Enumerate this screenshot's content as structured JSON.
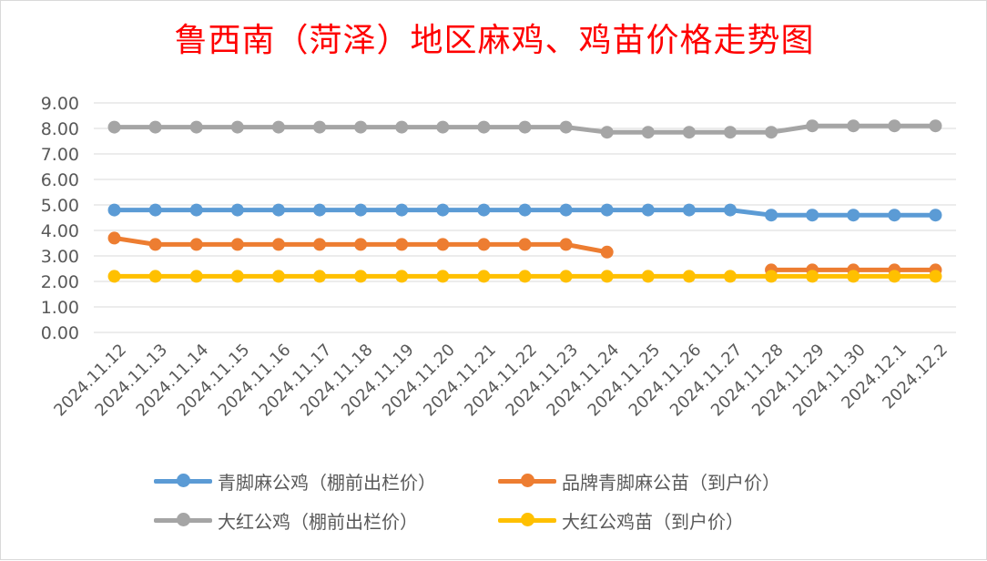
{
  "chart_data": {
    "type": "line",
    "title": "鲁西南（菏泽）地区麻鸡、鸡苗价格走势图",
    "categories": [
      "2024.11.12",
      "2024.11.13",
      "2024.11.14",
      "2024.11.15",
      "2024.11.16",
      "2024.11.17",
      "2024.11.18",
      "2024.11.19",
      "2024.11.20",
      "2024.11.21",
      "2024.11.22",
      "2024.11.23",
      "2024.11.24",
      "2024.11.25",
      "2024.11.26",
      "2024.11.27",
      "2024.11.28",
      "2024.11.29",
      "2024.11.30",
      "2024.12.1",
      "2024.12.2"
    ],
    "ylim": [
      0,
      9
    ],
    "yticks": [
      "0.00",
      "1.00",
      "2.00",
      "3.00",
      "4.00",
      "5.00",
      "6.00",
      "7.00",
      "8.00",
      "9.00"
    ],
    "grid": true,
    "legend_position": "bottom",
    "series": [
      {
        "name": "青脚麻公鸡（棚前出栏价）",
        "color": "#5b9bd5",
        "values": [
          4.8,
          4.8,
          4.8,
          4.8,
          4.8,
          4.8,
          4.8,
          4.8,
          4.8,
          4.8,
          4.8,
          4.8,
          4.8,
          4.8,
          4.8,
          4.8,
          4.6,
          4.6,
          4.6,
          4.6,
          4.6
        ]
      },
      {
        "name": "品牌青脚麻公苗（到户价）",
        "color": "#ed7d31",
        "values": [
          3.7,
          3.45,
          3.45,
          3.45,
          3.45,
          3.45,
          3.45,
          3.45,
          3.45,
          3.45,
          3.45,
          3.45,
          3.15,
          null,
          null,
          null,
          2.45,
          2.45,
          2.45,
          2.45,
          2.45
        ]
      },
      {
        "name": "大红公鸡（棚前出栏价）",
        "color": "#a5a5a5",
        "values": [
          8.05,
          8.05,
          8.05,
          8.05,
          8.05,
          8.05,
          8.05,
          8.05,
          8.05,
          8.05,
          8.05,
          8.05,
          7.85,
          7.85,
          7.85,
          7.85,
          7.85,
          8.1,
          8.1,
          8.1,
          8.1
        ]
      },
      {
        "name": "大红公鸡苗（到户价）",
        "color": "#ffc000",
        "values": [
          2.2,
          2.2,
          2.2,
          2.2,
          2.2,
          2.2,
          2.2,
          2.2,
          2.2,
          2.2,
          2.2,
          2.2,
          2.2,
          2.2,
          2.2,
          2.2,
          2.2,
          2.2,
          2.2,
          2.2,
          2.2
        ]
      }
    ]
  }
}
